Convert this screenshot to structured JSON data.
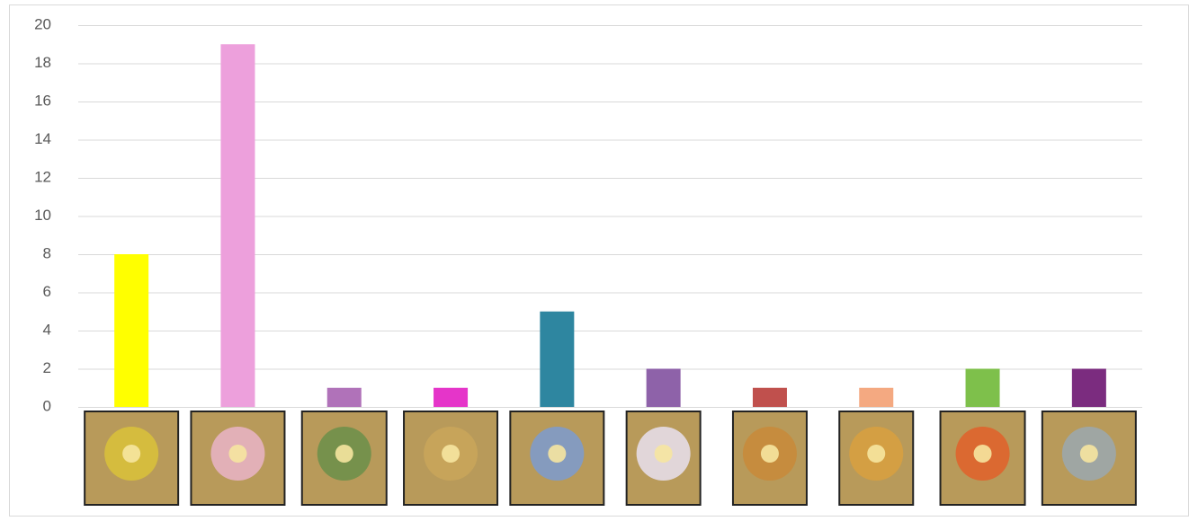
{
  "chart_data": {
    "type": "bar",
    "categories": [
      null,
      null,
      null,
      null,
      null,
      null,
      null,
      null,
      null,
      null
    ],
    "series": [
      {
        "values": [
          8,
          19,
          1,
          1,
          5,
          2,
          1,
          1,
          2,
          2
        ],
        "colors": [
          "#ffff00",
          "#eda0dc",
          "#b072b9",
          "#e535c9",
          "#2e86a0",
          "#8e62a9",
          "#c0504d",
          "#f4a981",
          "#7ec04b",
          "#7b2c7f"
        ]
      }
    ],
    "ylim": [
      0,
      20
    ],
    "yticks": [
      0,
      2,
      4,
      6,
      8,
      10,
      12,
      14,
      16,
      18,
      20
    ],
    "grid": true
  }
}
